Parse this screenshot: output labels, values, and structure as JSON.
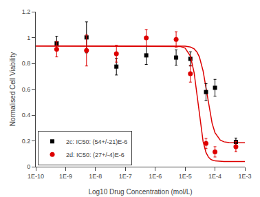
{
  "chart_data": {
    "type": "scatter",
    "title": "",
    "xlabel": "Log10 Drug Concentration (mol/L)",
    "ylabel": "Normalised Cell Viability",
    "log": "x",
    "grid": false,
    "legend": "lower left",
    "xlim": [
      1e-10,
      0.001
    ],
    "xticks": [
      {
        "value": 1e-10,
        "label": "1E-10"
      },
      {
        "value": 1e-09,
        "label": "1E-9"
      },
      {
        "value": 1e-08,
        "label": "1E-8"
      },
      {
        "value": 1e-07,
        "label": "1E-7"
      },
      {
        "value": 1e-06,
        "label": "1E-6"
      },
      {
        "value": 1e-05,
        "label": "1E-5"
      },
      {
        "value": 0.0001,
        "label": "1E-4"
      },
      {
        "value": 0.001,
        "label": "1E-3"
      }
    ],
    "ylim": [
      0.0,
      1.2
    ],
    "yticks": [
      0.0,
      0.2,
      0.4,
      0.6,
      0.8,
      1.0,
      1.2
    ],
    "series": [
      {
        "type": "line",
        "color": "#dd0000",
        "line_style": "solid",
        "x": [
          1e-10,
          1e-09,
          1e-08,
          1e-07,
          1e-06,
          2e-06,
          3e-06,
          5e-06,
          7e-06,
          1e-05,
          1.5e-05,
          2e-05,
          2.5e-05,
          3e-05,
          4e-05,
          5e-05,
          6e-05,
          7e-05,
          8e-05,
          0.0001,
          0.00015,
          0.0002,
          0.0003,
          0.0005,
          0.0007,
          0.001
        ],
        "values": [
          0.935,
          0.935,
          0.935,
          0.935,
          0.935,
          0.935,
          0.935,
          0.9348,
          0.9344,
          0.933,
          0.9266,
          0.9125,
          0.8876,
          0.85,
          0.7406,
          0.6102,
          0.4916,
          0.4005,
          0.3363,
          0.2628,
          0.2054,
          0.1926,
          0.1869,
          0.1853,
          0.1851,
          0.185
        ]
      },
      {
        "name": "2c: IC50: (54+/-21)E-6",
        "type": "scatter",
        "color": "black",
        "marker": "square",
        "x": [
          5e-10,
          5e-09,
          5e-08,
          5e-07,
          5e-06,
          1.5e-05,
          5e-05,
          0.0001,
          0.0005
        ],
        "values": [
          0.955,
          1.001,
          0.775,
          0.862,
          0.845,
          0.835,
          0.578,
          0.611,
          0.192
        ],
        "errors": [
          0.055,
          0.12,
          0.065,
          0.07,
          0.06,
          0.055,
          0.065,
          0.065,
          0.03
        ]
      },
      {
        "type": "line",
        "color": "#dd0000",
        "line_style": "solid",
        "x": [
          1e-10,
          1e-09,
          1e-08,
          1e-07,
          1e-06,
          2e-06,
          3e-06,
          5e-06,
          7e-06,
          1e-05,
          1.5e-05,
          2e-05,
          2.5e-05,
          3e-05,
          4e-05,
          5e-05,
          6e-05,
          7e-05,
          8e-05,
          0.0001,
          0.00015,
          0.0002,
          0.0003,
          0.0005,
          0.0007,
          0.001
        ],
        "values": [
          0.935,
          0.935,
          0.935,
          0.935,
          0.935,
          0.935,
          0.9349,
          0.9339,
          0.931,
          0.9185,
          0.8572,
          0.7279,
          0.5558,
          0.3945,
          0.1938,
          0.1101,
          0.0752,
          0.0594,
          0.0515,
          0.0447,
          0.0409,
          0.0403,
          0.0401,
          0.04,
          0.04,
          0.04
        ]
      },
      {
        "name": "2d: IC50: (27+/-4)E-6",
        "type": "scatter",
        "color": "#dd0000",
        "marker": "circle",
        "x": [
          5e-10,
          5e-09,
          5e-08,
          5e-07,
          5e-06,
          1.5e-05,
          5e-05,
          0.0001,
          0.0005
        ],
        "values": [
          0.91,
          0.9,
          0.875,
          0.997,
          0.985,
          0.72,
          0.18,
          0.115,
          0.155
        ],
        "errors": [
          0.06,
          0.12,
          0.065,
          0.065,
          0.06,
          0.065,
          0.04,
          0.04,
          0.04
        ]
      }
    ]
  }
}
